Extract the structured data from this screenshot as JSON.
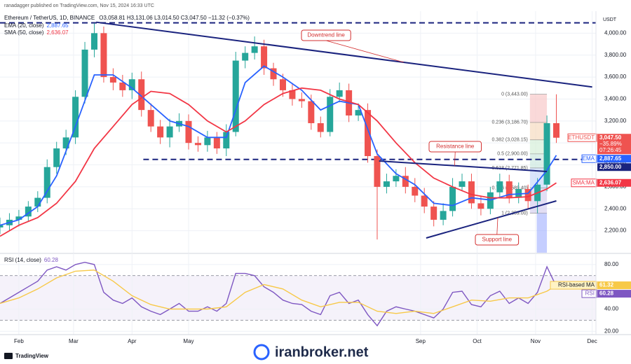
{
  "header": {
    "publisher": "ranadagger published on TradingView.com, Nov 15, 2024 16:33 UTC",
    "symbol": "Ethereum / TetherUS, 1D, BINANCE",
    "ohlc": "O3,058.81 H3,131.06 L3,014.50 C3,047.50 −11.32 (−0.37%)",
    "logo": "TradingView",
    "watermark": "iranbroker.net"
  },
  "chart_data": [
    {
      "type": "candlestick",
      "unit": "USDT",
      "x": [
        21,
        26,
        31,
        36,
        41,
        46,
        51,
        56,
        61,
        66,
        71,
        76,
        81,
        86,
        91,
        96,
        101,
        106,
        111,
        116,
        121,
        126,
        131,
        136,
        141,
        146,
        151,
        156,
        161,
        166,
        171,
        176,
        181,
        186,
        191,
        196,
        201,
        206,
        211,
        216,
        221,
        226,
        231,
        236,
        241,
        246,
        251,
        256,
        261,
        266,
        271,
        276,
        281,
        286,
        291,
        296,
        301,
        306,
        311,
        316
      ],
      "open": [
        2230,
        2250,
        2300,
        2330,
        2420,
        2500,
        2780,
        2950,
        3050,
        3420,
        3850,
        4000,
        3600,
        3550,
        3480,
        3580,
        3300,
        3150,
        3050,
        3150,
        3200,
        3000,
        2980,
        3050,
        2950,
        3100,
        3750,
        3820,
        3880,
        3680,
        3580,
        3480,
        3400,
        3380,
        3180,
        3100,
        3420,
        3480,
        3250,
        3300,
        2880,
        2600,
        2650,
        2700,
        2600,
        2520,
        2420,
        2300,
        2380,
        2600,
        2650,
        2450,
        2400,
        2550,
        2650,
        2500,
        2580,
        2470,
        2620,
        3180
      ],
      "high": [
        2320,
        2360,
        2390,
        2470,
        2560,
        2850,
        3010,
        3120,
        3480,
        3920,
        4090,
        4060,
        3680,
        3620,
        3640,
        3650,
        3360,
        3210,
        3220,
        3270,
        3260,
        3060,
        3110,
        3100,
        3170,
        3830,
        3880,
        3970,
        3940,
        3730,
        3630,
        3540,
        3460,
        3440,
        3240,
        3490,
        3550,
        3540,
        3360,
        3360,
        2940,
        2720,
        2760,
        2780,
        2680,
        2590,
        2470,
        2450,
        2680,
        2720,
        2720,
        2520,
        2600,
        2720,
        2710,
        2640,
        2620,
        2680,
        3250,
        3443
      ],
      "low": [
        2170,
        2200,
        2240,
        2280,
        2370,
        2450,
        2720,
        2890,
        2990,
        3360,
        3780,
        3550,
        3480,
        3420,
        3400,
        3240,
        3100,
        2990,
        2960,
        3100,
        2940,
        2920,
        2920,
        2900,
        2880,
        3060,
        3680,
        3760,
        3620,
        3520,
        3420,
        3340,
        3320,
        3120,
        3050,
        3060,
        3370,
        3190,
        3200,
        2820,
        2120,
        2540,
        2600,
        2540,
        2460,
        2360,
        2240,
        2250,
        2330,
        2560,
        2400,
        2340,
        2350,
        2500,
        2450,
        2450,
        2400,
        2360,
        2560,
        3000
      ],
      "close": [
        2250,
        2300,
        2330,
        2420,
        2500,
        2780,
        2950,
        3050,
        3420,
        3850,
        4000,
        3600,
        3550,
        3480,
        3580,
        3300,
        3150,
        3050,
        3150,
        3200,
        3000,
        2980,
        3050,
        2950,
        3100,
        3750,
        3820,
        3880,
        3680,
        3580,
        3480,
        3400,
        3380,
        3180,
        3100,
        3420,
        3480,
        3250,
        3300,
        2880,
        2600,
        2650,
        2700,
        2600,
        2520,
        2420,
        2300,
        2380,
        2600,
        2650,
        2450,
        2400,
        2550,
        2650,
        2500,
        2580,
        2470,
        2620,
        3180,
        3047.5
      ],
      "up_color": "#26a69a",
      "down_color": "#ef5350",
      "xlim": [
        21,
        337
      ],
      "ylim": [
        2000,
        4200
      ],
      "yticks": [
        {
          "value": 4000,
          "label": "4,000.00"
        },
        {
          "value": 3800,
          "label": "3,800.00"
        },
        {
          "value": 3600,
          "label": "3,600.00"
        },
        {
          "value": 3400,
          "label": "3,400.00"
        },
        {
          "value": 3200,
          "label": "3,200.00"
        },
        {
          "value": 3000,
          "label": "3,000.00"
        },
        {
          "value": 2800,
          "label": "2,800.00"
        },
        {
          "value": 2600,
          "label": "2,600.00"
        },
        {
          "value": 2400,
          "label": "2,400.00"
        },
        {
          "value": 2200,
          "label": "2,200.00"
        }
      ],
      "grid": true,
      "overlays": [
        {
          "name": "EMA (20, close)",
          "last_label": "2,887.65",
          "color": "#2962ff",
          "x": [
            21,
            31,
            41,
            51,
            61,
            71,
            81,
            91,
            101,
            111,
            121,
            131,
            141,
            151,
            161,
            171,
            181,
            191,
            201,
            211,
            221,
            231,
            241,
            251,
            261,
            271,
            281,
            291,
            301,
            311,
            316
          ],
          "values": [
            2250,
            2300,
            2420,
            2700,
            3150,
            3620,
            3620,
            3500,
            3350,
            3200,
            3150,
            3050,
            3050,
            3550,
            3700,
            3600,
            3480,
            3300,
            3380,
            3350,
            2900,
            2720,
            2620,
            2450,
            2430,
            2500,
            2480,
            2530,
            2540,
            2750,
            2887.65
          ]
        },
        {
          "name": "SMA (50, close)",
          "last_label": "2,636.07",
          "color": "#f23645",
          "x": [
            21,
            31,
            41,
            51,
            61,
            71,
            81,
            91,
            101,
            111,
            121,
            131,
            141,
            151,
            161,
            171,
            181,
            191,
            201,
            211,
            221,
            231,
            241,
            251,
            261,
            271,
            281,
            291,
            301,
            311,
            316
          ],
          "values": [
            2150,
            2250,
            2320,
            2450,
            2650,
            2950,
            3150,
            3350,
            3470,
            3450,
            3350,
            3200,
            3100,
            3200,
            3350,
            3450,
            3500,
            3480,
            3400,
            3350,
            3200,
            3000,
            2820,
            2680,
            2600,
            2530,
            2500,
            2500,
            2510,
            2580,
            2636.07
          ]
        }
      ],
      "hlines": [
        {
          "value": 4094,
          "from": 21,
          "color": "#1a237e"
        },
        {
          "value": 2850,
          "from": 97,
          "color": "#1a237e"
        }
      ],
      "trendlines": [
        {
          "label": "Downtrend line",
          "x": [
            72,
            335
          ],
          "y": [
            4100,
            3510
          ],
          "color": "#1a237e"
        },
        {
          "label": "Resistance line",
          "x": [
            222,
            311
          ],
          "y": [
            2835,
            2740
          ],
          "color": "#1a237e"
        },
        {
          "label": "Support line",
          "x": [
            247,
            316
          ],
          "y": [
            2134,
            2472
          ],
          "color": "#1a237e"
        }
      ],
      "fib": {
        "x": [
          302,
          311
        ],
        "levels": [
          {
            "value": 3443,
            "label": "0 (3,443.00)"
          },
          {
            "value": 3186.7,
            "label": "0.236 (3,186.70)"
          },
          {
            "value": 3028.15,
            "label": "0.382 (3,028.15)"
          },
          {
            "value": 2900,
            "label": "0.5 (2,900.00)"
          },
          {
            "value": 2771.85,
            "label": "0.618 (2,771.85)"
          },
          {
            "value": 2589.4,
            "label": "0.786 (2,589.40)"
          },
          {
            "value": 2359,
            "label": "1 (2,359.00)"
          }
        ]
      },
      "tags": [
        {
          "name": "ETHUSDT",
          "value": 3047.5,
          "label": "3,047.50",
          "extra": [
            "−35.89%",
            "07:26:45"
          ],
          "color": "#ef5350"
        },
        {
          "name": "EMA",
          "value": 2887.65,
          "label": "2,887.65",
          "color": "#2962ff"
        },
        {
          "value": 2850,
          "label": "2,850.00",
          "color": "#1a237e"
        },
        {
          "name": "SMA:MA",
          "value": 2636.07,
          "label": "2,636.07",
          "color": "#f23645"
        }
      ]
    },
    {
      "type": "line",
      "title": "RSI (14, close)",
      "last_label": "60.28",
      "xlim": [
        21,
        337
      ],
      "ylim": [
        17,
        90
      ],
      "yticks": [
        {
          "value": 80,
          "label": "80.00"
        },
        {
          "value": 40,
          "label": "40.00"
        },
        {
          "value": 20,
          "label": "20.00"
        }
      ],
      "band": [
        30,
        70
      ],
      "grid": true,
      "xticks": [
        {
          "value": 31,
          "label": "Feb"
        },
        {
          "value": 60,
          "label": "Mar"
        },
        {
          "value": 91,
          "label": "Apr"
        },
        {
          "value": 121,
          "label": "May"
        },
        {
          "value": 244,
          "label": "Sep"
        },
        {
          "value": 274,
          "label": "Oct"
        },
        {
          "value": 305,
          "label": "Nov"
        },
        {
          "value": 335,
          "label": "Dec"
        }
      ],
      "series": [
        {
          "name": "RSI",
          "color": "#7e57c2",
          "x": [
            21,
            26,
            31,
            36,
            41,
            46,
            51,
            56,
            61,
            66,
            71,
            76,
            81,
            86,
            91,
            96,
            101,
            106,
            111,
            116,
            121,
            126,
            131,
            136,
            141,
            146,
            151,
            156,
            161,
            166,
            171,
            176,
            181,
            186,
            191,
            196,
            201,
            206,
            211,
            216,
            221,
            226,
            231,
            236,
            241,
            246,
            251,
            256,
            261,
            266,
            271,
            276,
            281,
            286,
            291,
            296,
            301,
            306,
            311,
            316
          ],
          "values": [
            45,
            50,
            55,
            60,
            65,
            75,
            78,
            75,
            80,
            82,
            80,
            55,
            48,
            45,
            50,
            42,
            38,
            35,
            40,
            45,
            38,
            38,
            42,
            38,
            45,
            72,
            72,
            70,
            60,
            55,
            48,
            45,
            44,
            38,
            35,
            52,
            55,
            45,
            48,
            35,
            25,
            38,
            42,
            40,
            38,
            35,
            32,
            40,
            55,
            56,
            44,
            42,
            52,
            56,
            45,
            50,
            45,
            55,
            78,
            60.28
          ]
        },
        {
          "name": "RSI-based MA",
          "color": "#f7c948",
          "x": [
            21,
            31,
            41,
            51,
            61,
            71,
            81,
            91,
            101,
            111,
            121,
            131,
            141,
            151,
            161,
            171,
            181,
            191,
            201,
            211,
            221,
            231,
            241,
            251,
            261,
            271,
            281,
            291,
            301,
            311,
            316
          ],
          "values": [
            45,
            50,
            58,
            68,
            74,
            75,
            65,
            52,
            44,
            40,
            40,
            40,
            42,
            55,
            62,
            58,
            48,
            42,
            46,
            46,
            38,
            36,
            38,
            36,
            42,
            48,
            47,
            50,
            50,
            56,
            61.32
          ]
        }
      ],
      "tags": [
        {
          "name": "RSI-based MA",
          "value": 61.32,
          "label": "61.32",
          "color": "#f7c948"
        },
        {
          "name": "RSI",
          "value": 60.28,
          "label": "60.28",
          "color": "#7e57c2"
        }
      ]
    }
  ]
}
